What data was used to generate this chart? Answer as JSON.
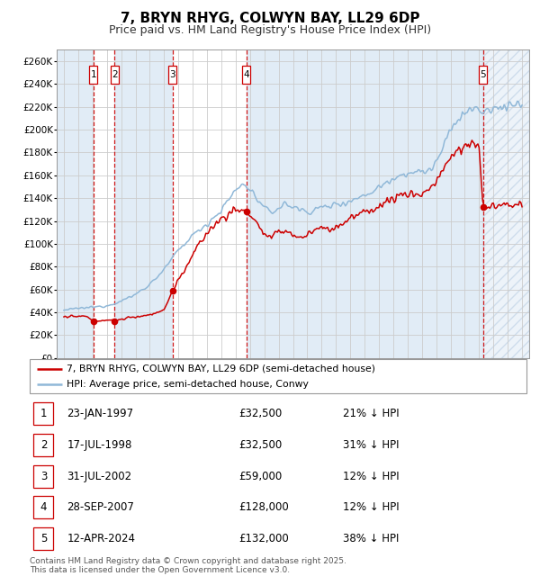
{
  "title": "7, BRYN RHYG, COLWYN BAY, LL29 6DP",
  "subtitle": "Price paid vs. HM Land Registry's House Price Index (HPI)",
  "title_fontsize": 11,
  "subtitle_fontsize": 9,
  "ylim": [
    0,
    270000
  ],
  "xlim_start": 1994.5,
  "xlim_end": 2027.5,
  "ytick_step": 20000,
  "background_color": "#ffffff",
  "plot_bg_color": "#ffffff",
  "grid_color": "#cccccc",
  "hpi_line_color": "#90b8d8",
  "price_line_color": "#cc0000",
  "dot_color": "#cc0000",
  "vline_color": "#cc0000",
  "shade_color": "#dce9f5",
  "transactions": [
    {
      "num": 1,
      "date_str": "23-JAN-1997",
      "date_val": 1997.06,
      "price": 32500,
      "pct": "21%",
      "dir": "↓"
    },
    {
      "num": 2,
      "date_str": "17-JUL-1998",
      "date_val": 1998.54,
      "price": 32500,
      "pct": "31%",
      "dir": "↓"
    },
    {
      "num": 3,
      "date_str": "31-JUL-2002",
      "date_val": 2002.58,
      "price": 59000,
      "pct": "12%",
      "dir": "↓"
    },
    {
      "num": 4,
      "date_str": "28-SEP-2007",
      "date_val": 2007.74,
      "price": 128000,
      "pct": "12%",
      "dir": "↓"
    },
    {
      "num": 5,
      "date_str": "12-APR-2024",
      "date_val": 2024.28,
      "price": 132000,
      "pct": "38%",
      "dir": "↓"
    }
  ],
  "legend_label_price": "7, BRYN RHYG, COLWYN BAY, LL29 6DP (semi-detached house)",
  "legend_label_hpi": "HPI: Average price, semi-detached house, Conwy",
  "footer_text": "Contains HM Land Registry data © Crown copyright and database right 2025.\nThis data is licensed under the Open Government Licence v3.0.",
  "table_rows": [
    [
      "1",
      "23-JAN-1997",
      "£32,500",
      "21% ↓ HPI"
    ],
    [
      "2",
      "17-JUL-1998",
      "£32,500",
      "31% ↓ HPI"
    ],
    [
      "3",
      "31-JUL-2002",
      "£59,000",
      "12% ↓ HPI"
    ],
    [
      "4",
      "28-SEP-2007",
      "£128,000",
      "12% ↓ HPI"
    ],
    [
      "5",
      "12-APR-2024",
      "£132,000",
      "38% ↓ HPI"
    ]
  ],
  "hpi_keypoints": [
    [
      1995.0,
      42000
    ],
    [
      1996.0,
      43500
    ],
    [
      1997.0,
      44500
    ],
    [
      1998.0,
      46000
    ],
    [
      1999.0,
      50000
    ],
    [
      2000.0,
      56000
    ],
    [
      2001.0,
      65000
    ],
    [
      2002.0,
      78000
    ],
    [
      2003.0,
      95000
    ],
    [
      2004.0,
      108000
    ],
    [
      2005.0,
      118000
    ],
    [
      2006.0,
      130000
    ],
    [
      2007.0,
      148000
    ],
    [
      2007.5,
      152000
    ],
    [
      2008.0,
      148000
    ],
    [
      2008.5,
      138000
    ],
    [
      2009.0,
      130000
    ],
    [
      2009.5,
      128000
    ],
    [
      2010.0,
      132000
    ],
    [
      2010.5,
      135000
    ],
    [
      2011.0,
      132000
    ],
    [
      2011.5,
      130000
    ],
    [
      2012.0,
      128000
    ],
    [
      2012.5,
      130000
    ],
    [
      2013.0,
      132000
    ],
    [
      2013.5,
      133000
    ],
    [
      2014.0,
      135000
    ],
    [
      2014.5,
      136000
    ],
    [
      2015.0,
      138000
    ],
    [
      2015.5,
      140000
    ],
    [
      2016.0,
      143000
    ],
    [
      2016.5,
      146000
    ],
    [
      2017.0,
      150000
    ],
    [
      2017.5,
      154000
    ],
    [
      2018.0,
      158000
    ],
    [
      2018.5,
      161000
    ],
    [
      2019.0,
      162000
    ],
    [
      2019.5,
      163000
    ],
    [
      2020.0,
      162000
    ],
    [
      2020.5,
      165000
    ],
    [
      2021.0,
      172000
    ],
    [
      2021.5,
      185000
    ],
    [
      2022.0,
      200000
    ],
    [
      2022.5,
      210000
    ],
    [
      2023.0,
      215000
    ],
    [
      2023.5,
      218000
    ],
    [
      2024.0,
      217000
    ],
    [
      2024.5,
      215000
    ],
    [
      2025.0,
      218000
    ],
    [
      2025.5,
      220000
    ],
    [
      2026.0,
      222000
    ],
    [
      2027.0,
      222000
    ]
  ],
  "price_keypoints": [
    [
      1995.0,
      36000
    ],
    [
      1996.5,
      36500
    ],
    [
      1997.06,
      32500
    ],
    [
      1997.5,
      33000
    ],
    [
      1998.0,
      33500
    ],
    [
      1998.54,
      32500
    ],
    [
      1999.0,
      34000
    ],
    [
      2000.0,
      36000
    ],
    [
      2001.0,
      38000
    ],
    [
      2002.0,
      42000
    ],
    [
      2002.58,
      59000
    ],
    [
      2003.0,
      68000
    ],
    [
      2004.0,
      90000
    ],
    [
      2005.0,
      110000
    ],
    [
      2006.0,
      122000
    ],
    [
      2007.0,
      130000
    ],
    [
      2007.74,
      128000
    ],
    [
      2008.0,
      126000
    ],
    [
      2008.5,
      118000
    ],
    [
      2009.0,
      108000
    ],
    [
      2009.5,
      105000
    ],
    [
      2010.0,
      110000
    ],
    [
      2010.5,
      112000
    ],
    [
      2011.0,
      108000
    ],
    [
      2011.5,
      105000
    ],
    [
      2012.0,
      108000
    ],
    [
      2012.5,
      112000
    ],
    [
      2013.0,
      115000
    ],
    [
      2013.5,
      112000
    ],
    [
      2014.0,
      115000
    ],
    [
      2014.5,
      118000
    ],
    [
      2015.0,
      122000
    ],
    [
      2015.5,
      125000
    ],
    [
      2016.0,
      128000
    ],
    [
      2016.5,
      130000
    ],
    [
      2017.0,
      133000
    ],
    [
      2017.5,
      136000
    ],
    [
      2018.0,
      140000
    ],
    [
      2018.5,
      143000
    ],
    [
      2019.0,
      143000
    ],
    [
      2019.5,
      144000
    ],
    [
      2020.0,
      143000
    ],
    [
      2020.5,
      148000
    ],
    [
      2021.0,
      155000
    ],
    [
      2021.5,
      165000
    ],
    [
      2022.0,
      175000
    ],
    [
      2022.5,
      182000
    ],
    [
      2023.0,
      185000
    ],
    [
      2023.5,
      188000
    ],
    [
      2024.0,
      185000
    ],
    [
      2024.28,
      132000
    ],
    [
      2024.5,
      132500
    ],
    [
      2025.0,
      133000
    ],
    [
      2025.5,
      133500
    ],
    [
      2026.0,
      134000
    ],
    [
      2027.0,
      134000
    ]
  ]
}
